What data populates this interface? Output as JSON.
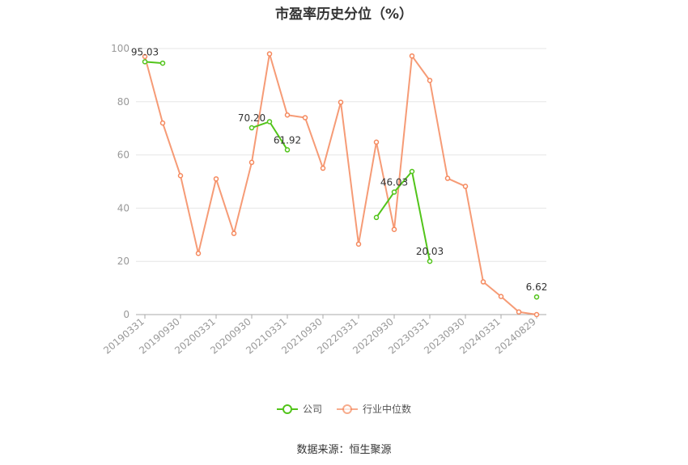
{
  "title": "市盈率历史分位（%）",
  "source": "数据来源：恒生聚源",
  "colors": {
    "company": "#52c41a",
    "industry": "#f5895e",
    "grid": "#e6e6e6",
    "axis": "#999999"
  },
  "chart_data": {
    "type": "line",
    "title": "市盈率历史分位（%）",
    "ylim": [
      0,
      100
    ],
    "yticks": [
      0,
      20,
      40,
      60,
      80,
      100
    ],
    "grid": true,
    "legend_position": "bottom",
    "x_tick_labels": [
      "20190331",
      "20190930",
      "20200331",
      "20200930",
      "20210331",
      "20210930",
      "20220331",
      "20220930",
      "20230331",
      "20230930",
      "20240331",
      "20240829"
    ],
    "categories": [
      "20190331",
      "20190630",
      "20190930",
      "20191231",
      "20200331",
      "20200630",
      "20200930",
      "20201231",
      "20210331",
      "20210630",
      "20210930",
      "20211231",
      "20220331",
      "20220630",
      "20220930",
      "20221231",
      "20230331",
      "20230630",
      "20230930",
      "20231231",
      "20240331",
      "20240630",
      "20240829"
    ],
    "series": [
      {
        "name": "公司",
        "color": "#52c41a",
        "values": [
          95.03,
          94.5,
          null,
          null,
          null,
          null,
          70.2,
          72.5,
          61.92,
          null,
          null,
          null,
          null,
          36.5,
          46.03,
          53.8,
          20.03,
          null,
          null,
          null,
          null,
          null,
          6.62
        ]
      },
      {
        "name": "行业中位数",
        "color": "#f5895e",
        "values": [
          97.0,
          72.0,
          52.2,
          23.0,
          51.0,
          30.5,
          57.2,
          98.0,
          75.0,
          74.0,
          55.0,
          79.8,
          26.5,
          64.8,
          32.0,
          97.2,
          88.0,
          51.2,
          48.2,
          12.3,
          6.8,
          1.0,
          0.0
        ]
      }
    ],
    "data_labels": [
      {
        "series": "公司",
        "index": 0,
        "text": "95.03"
      },
      {
        "series": "公司",
        "index": 6,
        "text": "70.20"
      },
      {
        "series": "公司",
        "index": 8,
        "text": "61.92"
      },
      {
        "series": "公司",
        "index": 14,
        "text": "46.03"
      },
      {
        "series": "公司",
        "index": 16,
        "text": "20.03"
      },
      {
        "series": "公司",
        "index": 22,
        "text": "6.62"
      }
    ]
  }
}
